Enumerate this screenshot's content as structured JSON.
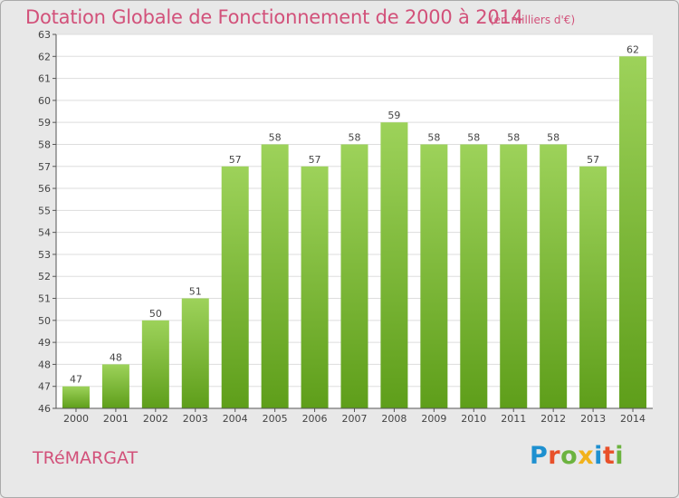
{
  "chart_data": {
    "type": "bar",
    "title": "Dotation Globale de Fonctionnement de 2000 à 2014",
    "subtitle": "(en milliers d'€)",
    "xlabel": "",
    "ylabel": "",
    "categories": [
      "2000",
      "2001",
      "2002",
      "2003",
      "2004",
      "2005",
      "2006",
      "2007",
      "2008",
      "2009",
      "2010",
      "2011",
      "2012",
      "2013",
      "2014"
    ],
    "values": [
      47,
      48,
      50,
      51,
      57,
      58,
      57,
      58,
      59,
      58,
      58,
      58,
      58,
      57,
      62
    ],
    "ylim": [
      46,
      63
    ],
    "yticks": [
      46,
      47,
      48,
      49,
      50,
      51,
      52,
      53,
      54,
      55,
      56,
      57,
      58,
      59,
      60,
      61,
      62,
      63
    ],
    "grid": true,
    "bar_color": "#7fc136",
    "bar_color_dark": "#5e9e1a",
    "bar_color_light": "#9dd25a"
  },
  "commune": "TRéMARGAT",
  "logo": {
    "letters": [
      "P",
      "r",
      "o",
      "x",
      "i",
      "t",
      "i"
    ],
    "colors": [
      "#1e90d0",
      "#e8502a",
      "#6cb33f",
      "#f2b21b",
      "#1e90d0",
      "#e8502a",
      "#6cb33f"
    ]
  },
  "colors": {
    "accent": "#d2517a",
    "background": "#e8e8e8",
    "plot_background": "#ffffff",
    "grid": "#dddddd"
  }
}
